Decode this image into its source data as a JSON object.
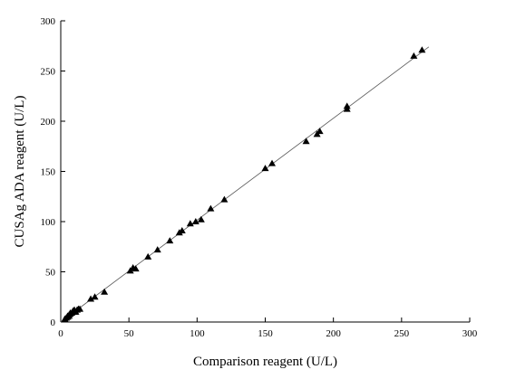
{
  "chart_data": {
    "type": "scatter",
    "xlabel": "Comparison reagent (U/L)",
    "ylabel": "CUSAg ADA reagent (U/L)",
    "xlim": [
      0,
      300
    ],
    "ylim": [
      0,
      300
    ],
    "x_ticks": [
      0,
      50,
      100,
      150,
      200,
      250,
      300
    ],
    "y_ticks": [
      0,
      50,
      100,
      150,
      200,
      250,
      300
    ],
    "grid": false,
    "marker": "triangle",
    "series": [
      {
        "points": [
          [
            3,
            3
          ],
          [
            4,
            4
          ],
          [
            5,
            5
          ],
          [
            5,
            6
          ],
          [
            6,
            6
          ],
          [
            6,
            7
          ],
          [
            7,
            8
          ],
          [
            7,
            9
          ],
          [
            8,
            9
          ],
          [
            9,
            10
          ],
          [
            9,
            11
          ],
          [
            10,
            10
          ],
          [
            10,
            12
          ],
          [
            11,
            10
          ],
          [
            12,
            12
          ],
          [
            13,
            13
          ],
          [
            14,
            13
          ],
          [
            22,
            23
          ],
          [
            25,
            25
          ],
          [
            32,
            30
          ],
          [
            51,
            51
          ],
          [
            53,
            54
          ],
          [
            55,
            53
          ],
          [
            64,
            65
          ],
          [
            71,
            72
          ],
          [
            80,
            81
          ],
          [
            87,
            89
          ],
          [
            89,
            91
          ],
          [
            95,
            98
          ],
          [
            99,
            100
          ],
          [
            103,
            102
          ],
          [
            110,
            113
          ],
          [
            120,
            122
          ],
          [
            150,
            153
          ],
          [
            155,
            158
          ],
          [
            180,
            180
          ],
          [
            188,
            187
          ],
          [
            190,
            190
          ],
          [
            210,
            212
          ],
          [
            210,
            215
          ],
          [
            259,
            265
          ],
          [
            265,
            271
          ]
        ]
      }
    ],
    "fit_line": {
      "x": [
        0,
        270
      ],
      "y": [
        0,
        274
      ]
    }
  }
}
